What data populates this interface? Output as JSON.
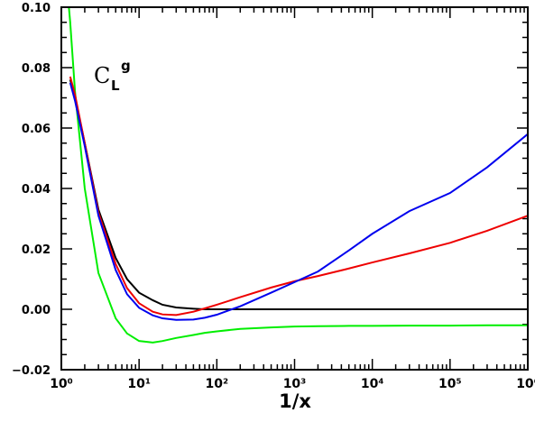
{
  "chart_data": {
    "type": "line",
    "x_label": "1/x",
    "annotation": {
      "base": "C",
      "sub": "L",
      "sup": "g"
    },
    "x": [
      1.25,
      1.3,
      1.5,
      2,
      3,
      5,
      7,
      10,
      15,
      20,
      30,
      50,
      70,
      100,
      200,
      500,
      1000,
      2000,
      5000,
      10000,
      30000,
      100000,
      300000,
      1000000
    ],
    "log_x": true,
    "xlim": [
      1,
      1000000
    ],
    "xticks": [
      {
        "value": 1,
        "label": "10⁰"
      },
      {
        "value": 10,
        "label": "10¹"
      },
      {
        "value": 100,
        "label": "10²"
      },
      {
        "value": 1000,
        "label": "10³"
      },
      {
        "value": 10000,
        "label": "10⁴"
      },
      {
        "value": 100000,
        "label": "10⁵"
      },
      {
        "value": 1000000,
        "label": "10⁶"
      }
    ],
    "ylim": [
      -0.02,
      0.1
    ],
    "yticks": [
      {
        "value": -0.02,
        "label": "−0.02"
      },
      {
        "value": 0,
        "label": "0.00"
      },
      {
        "value": 0.02,
        "label": "0.02"
      },
      {
        "value": 0.04,
        "label": "0.04"
      },
      {
        "value": 0.06,
        "label": "0.06"
      },
      {
        "value": 0.08,
        "label": "0.08"
      },
      {
        "value": 0.1,
        "label": "0.10"
      }
    ],
    "series": [
      {
        "color": "#000000",
        "values": [
          null,
          0.076,
          0.07,
          0.055,
          0.033,
          0.017,
          0.01,
          0.0055,
          0.003,
          0.0015,
          0.0006,
          0.0002,
          0,
          0,
          0,
          0,
          0,
          0,
          0,
          0,
          0,
          0,
          0,
          0
        ]
      },
      {
        "color": "#00ee00",
        "values": [
          0.1,
          0.095,
          0.072,
          0.04,
          0.012,
          -0.003,
          -0.008,
          -0.0105,
          -0.011,
          -0.0105,
          -0.0095,
          -0.0085,
          -0.0078,
          -0.0073,
          -0.0065,
          -0.006,
          -0.0057,
          -0.0056,
          -0.0055,
          -0.0055,
          -0.0054,
          -0.0054,
          -0.0053,
          -0.0053
        ]
      },
      {
        "color": "#ee0000",
        "values": [
          null,
          0.077,
          0.071,
          0.055,
          0.032,
          0.015,
          0.007,
          0.002,
          -0.0008,
          -0.0017,
          -0.0019,
          -0.0008,
          0.0003,
          0.0015,
          0.004,
          0.0072,
          0.0093,
          0.011,
          0.0135,
          0.0155,
          0.0185,
          0.022,
          0.026,
          0.031
        ]
      },
      {
        "color": "#0000ee",
        "values": [
          null,
          0.075,
          0.069,
          0.054,
          0.031,
          0.013,
          0.005,
          0.0005,
          -0.002,
          -0.003,
          -0.0035,
          -0.0034,
          -0.0028,
          -0.0018,
          0.001,
          0.0055,
          0.009,
          0.0125,
          0.0195,
          0.025,
          0.0325,
          0.0385,
          0.047,
          0.058
        ]
      }
    ]
  }
}
